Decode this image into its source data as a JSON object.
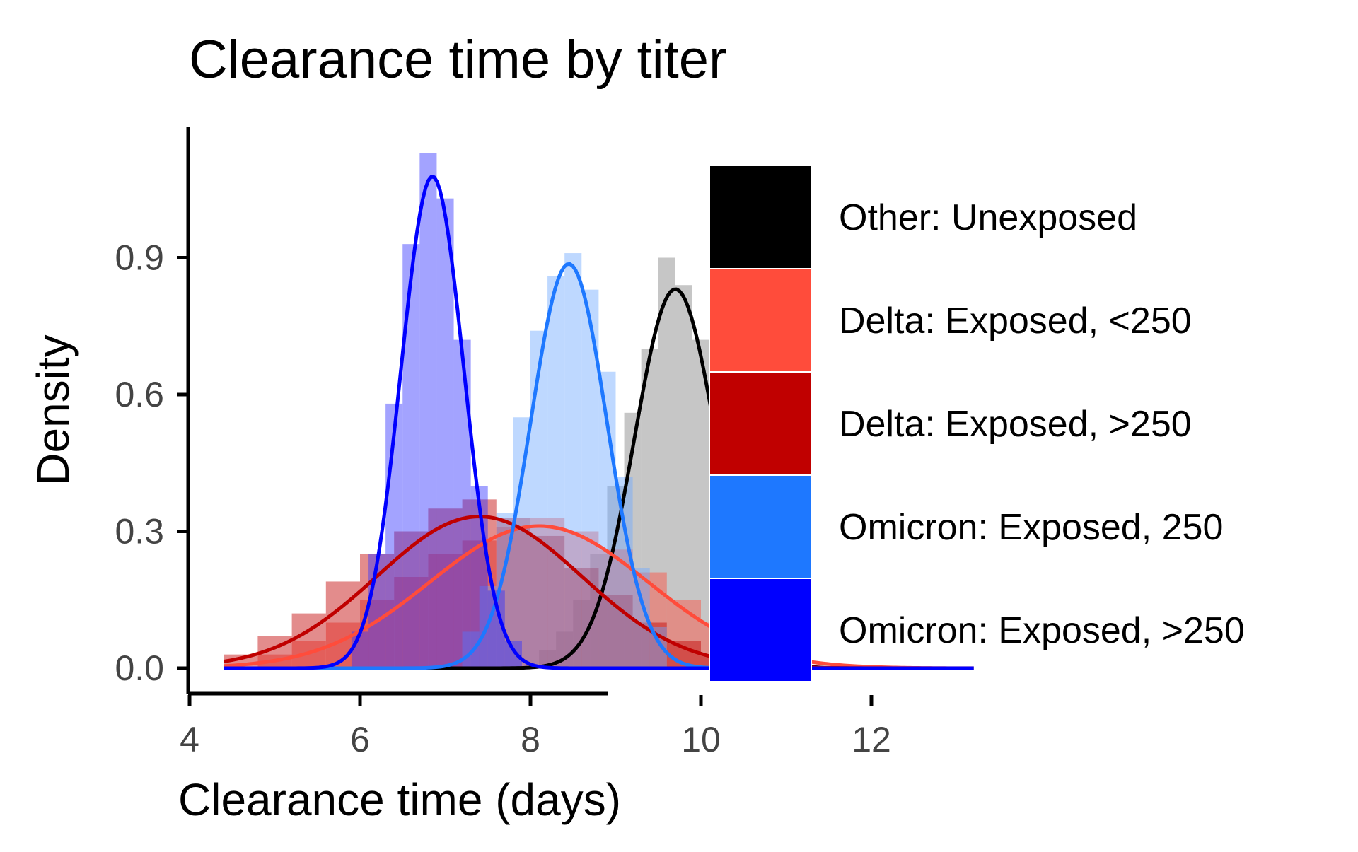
{
  "chart_data": {
    "type": "area",
    "title": "Clearance time by titer",
    "xlabel": "Clearance time (days)",
    "ylabel": "Density",
    "xlim": [
      4,
      14
    ],
    "ylim": [
      -0.06,
      1.18
    ],
    "x_ticks": [
      4,
      6,
      8,
      10,
      12
    ],
    "y_ticks": [
      0.0,
      0.3,
      0.6,
      0.9
    ],
    "x_tick_labels": [
      "4",
      "6",
      "8",
      "10",
      "12"
    ],
    "y_tick_labels": [
      "0.0",
      "0.3",
      "0.6",
      "0.9"
    ],
    "grid": false,
    "legend_position": "right",
    "series": [
      {
        "name": "Other: Unexposed",
        "color": "#000000",
        "fill_color": "#808080",
        "density_curve": {
          "mean": 9.7,
          "sd": 0.48,
          "range": [
            4.4,
            13.2
          ]
        },
        "histogram": {
          "x": [
            8.2,
            8.4,
            8.6,
            8.8,
            9.0,
            9.2,
            9.4,
            9.6,
            9.8,
            10.0,
            10.2,
            10.4,
            10.6,
            10.8,
            11.0,
            11.2
          ],
          "y": [
            0.04,
            0.08,
            0.15,
            0.25,
            0.4,
            0.56,
            0.7,
            0.9,
            0.84,
            0.72,
            0.53,
            0.35,
            0.2,
            0.1,
            0.05,
            0.02
          ]
        }
      },
      {
        "name": "Delta: Exposed, <250",
        "color": "#ff4c3b",
        "fill_color": "#ff4c3b",
        "density_curve": {
          "mean": 8.1,
          "sd": 1.28,
          "range": [
            4.4,
            13.2
          ]
        },
        "histogram": {
          "x": [
            5.0,
            5.4,
            5.8,
            6.2,
            6.6,
            7.0,
            7.4,
            7.8,
            8.2,
            8.6,
            9.0,
            9.4,
            9.8,
            10.2,
            10.6,
            11.0
          ],
          "y": [
            0.03,
            0.06,
            0.1,
            0.15,
            0.2,
            0.25,
            0.28,
            0.31,
            0.33,
            0.3,
            0.26,
            0.21,
            0.15,
            0.1,
            0.06,
            0.03
          ]
        }
      },
      {
        "name": "Delta: Exposed, >250",
        "color": "#c00000",
        "fill_color": "#c00000",
        "density_curve": {
          "mean": 7.4,
          "sd": 1.2,
          "range": [
            4.4,
            13.2
          ]
        },
        "histogram": {
          "x": [
            4.6,
            5.0,
            5.4,
            5.8,
            6.2,
            6.6,
            7.0,
            7.4,
            7.8,
            8.2,
            8.6,
            9.0,
            9.4,
            9.8,
            10.2
          ],
          "y": [
            0.03,
            0.07,
            0.12,
            0.19,
            0.25,
            0.3,
            0.35,
            0.37,
            0.33,
            0.29,
            0.22,
            0.16,
            0.1,
            0.06,
            0.03
          ]
        }
      },
      {
        "name": "Omicron: Exposed, 250",
        "color": "#1e78ff",
        "fill_color": "#6fa8ff",
        "density_curve": {
          "mean": 8.45,
          "sd": 0.45,
          "range": [
            4.4,
            13.2
          ]
        },
        "histogram": {
          "x": [
            7.3,
            7.5,
            7.7,
            7.9,
            8.1,
            8.3,
            8.5,
            8.7,
            8.9,
            9.1,
            9.3,
            9.5
          ],
          "y": [
            0.08,
            0.18,
            0.34,
            0.55,
            0.74,
            0.86,
            0.91,
            0.83,
            0.65,
            0.42,
            0.22,
            0.09
          ]
        }
      },
      {
        "name": "Omicron: Exposed, >250",
        "color": "#0000ff",
        "fill_color": "#3333ff",
        "density_curve": {
          "mean": 6.85,
          "sd": 0.37,
          "range": [
            4.4,
            13.2
          ]
        },
        "histogram": {
          "x": [
            6.0,
            6.2,
            6.4,
            6.6,
            6.8,
            7.0,
            7.2,
            7.4,
            7.6,
            7.8
          ],
          "y": [
            0.08,
            0.25,
            0.58,
            0.93,
            1.13,
            1.03,
            0.72,
            0.4,
            0.17,
            0.06
          ]
        }
      }
    ]
  }
}
